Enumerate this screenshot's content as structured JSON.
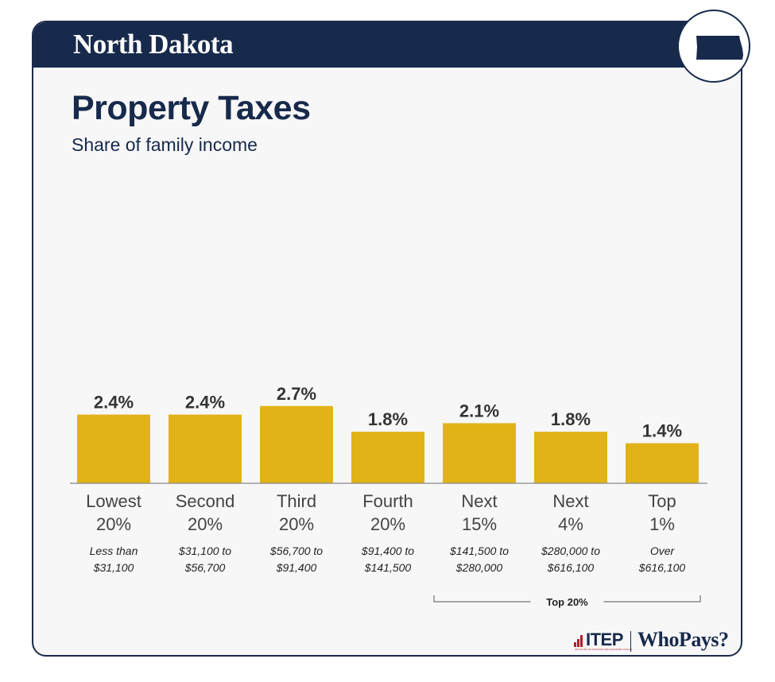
{
  "header": {
    "state_name": "North Dakota",
    "state_icon": "north-dakota-map-icon"
  },
  "colors": {
    "navy": "#172a4c",
    "bar": "#e2b317",
    "axis": "#888888",
    "text": "#333333"
  },
  "chart_data": {
    "type": "bar",
    "title": "Property Taxes",
    "subtitle": "Share of family income",
    "unit": "%",
    "ylim": [
      0,
      3.5
    ],
    "categories": [
      {
        "group_line1": "Lowest",
        "group_line2": "20%",
        "range_line1": "Less than",
        "range_line2": "$31,100",
        "value": 2.4,
        "label": "2.4%"
      },
      {
        "group_line1": "Second",
        "group_line2": "20%",
        "range_line1": "$31,100 to",
        "range_line2": "$56,700",
        "value": 2.4,
        "label": "2.4%"
      },
      {
        "group_line1": "Third",
        "group_line2": "20%",
        "range_line1": "$56,700 to",
        "range_line2": "$91,400",
        "value": 2.7,
        "label": "2.7%"
      },
      {
        "group_line1": "Fourth",
        "group_line2": "20%",
        "range_line1": "$91,400 to",
        "range_line2": "$141,500",
        "value": 1.8,
        "label": "1.8%"
      },
      {
        "group_line1": "Next",
        "group_line2": "15%",
        "range_line1": "$141,500 to",
        "range_line2": "$280,000",
        "value": 2.1,
        "label": "2.1%"
      },
      {
        "group_line1": "Next",
        "group_line2": "4%",
        "range_line1": "$280,000 to",
        "range_line2": "$616,100",
        "value": 1.8,
        "label": "1.8%"
      },
      {
        "group_line1": "Top",
        "group_line2": "1%",
        "range_line1": "Over",
        "range_line2": "$616,100",
        "value": 1.4,
        "label": "1.4%"
      }
    ],
    "bracket": {
      "label": "Top 20%",
      "from_index": 4,
      "to_index": 6
    }
  },
  "footer": {
    "itep": "ITEP",
    "itep_subtitle": "INSTITUTE ON TAXATION AND ECONOMIC POLICY",
    "whopays": "WhoPays?"
  }
}
